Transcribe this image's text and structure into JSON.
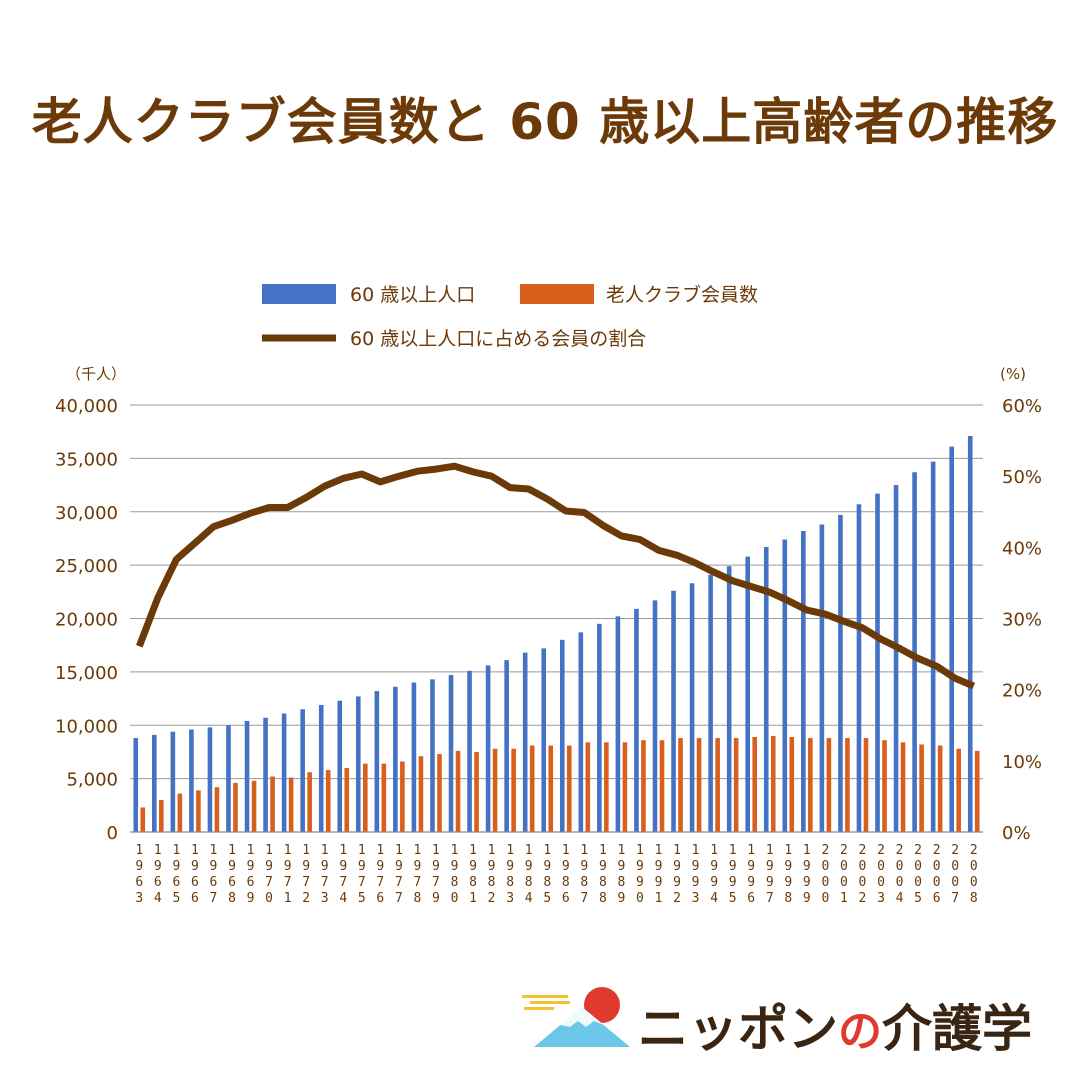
{
  "title": "老人クラブ会員数と 60 歳以上高齢者の推移",
  "chart_data": {
    "type": "bar",
    "categories": [
      "1963",
      "1964",
      "1965",
      "1966",
      "1967",
      "1968",
      "1969",
      "1970",
      "1971",
      "1972",
      "1973",
      "1974",
      "1975",
      "1976",
      "1977",
      "1978",
      "1979",
      "1980",
      "1981",
      "1982",
      "1983",
      "1984",
      "1985",
      "1986",
      "1987",
      "1988",
      "1989",
      "1990",
      "1991",
      "1992",
      "1993",
      "1994",
      "1995",
      "1996",
      "1997",
      "1998",
      "1999",
      "2000",
      "2001",
      "2002",
      "2003",
      "2004",
      "2005",
      "2006",
      "2007",
      "2008"
    ],
    "series": [
      {
        "name": "60 歳以上人口",
        "kind": "bar",
        "axis": "left",
        "color": "#4472c4",
        "values": [
          8800,
          9100,
          9400,
          9600,
          9800,
          10000,
          10400,
          10700,
          11100,
          11500,
          11900,
          12300,
          12700,
          13200,
          13600,
          14000,
          14300,
          14700,
          15100,
          15600,
          16100,
          16800,
          17200,
          18000,
          18700,
          19500,
          20200,
          20900,
          21700,
          22600,
          23300,
          24100,
          24900,
          25800,
          26700,
          27400,
          28200,
          28800,
          29700,
          30700,
          31700,
          32500,
          33700,
          34700,
          36100,
          37100
        ]
      },
      {
        "name": "老人クラブ会員数",
        "kind": "bar",
        "axis": "left",
        "color": "#d95f1c",
        "values": [
          2300,
          3000,
          3600,
          3900,
          4200,
          4600,
          4800,
          5200,
          5100,
          5600,
          5800,
          6000,
          6400,
          6400,
          6600,
          7100,
          7300,
          7600,
          7500,
          7800,
          7800,
          8100,
          8100,
          8100,
          8400,
          8400,
          8400,
          8600,
          8600,
          8800,
          8800,
          8800,
          8800,
          8900,
          9000,
          8900,
          8800,
          8800,
          8800,
          8800,
          8600,
          8400,
          8200,
          8100,
          7800,
          7600
        ]
      },
      {
        "name": "60 歳以上人口に占める会員の割合",
        "kind": "line",
        "axis": "right",
        "color": "#6b3a08",
        "values": [
          26.1,
          32.9,
          38.3,
          40.6,
          42.9,
          43.8,
          44.8,
          45.6,
          45.6,
          47.0,
          48.6,
          49.7,
          50.3,
          49.2,
          50.0,
          50.7,
          51.0,
          51.4,
          50.6,
          50.0,
          48.4,
          48.2,
          46.8,
          45.1,
          44.9,
          43.1,
          41.6,
          41.1,
          39.6,
          38.9,
          37.8,
          36.5,
          35.3,
          34.5,
          33.7,
          32.5,
          31.2,
          30.6,
          29.6,
          28.7,
          27.1,
          25.8,
          24.4,
          23.3,
          21.6,
          20.5
        ]
      }
    ],
    "yleft": {
      "unit": "（千人）",
      "min": 0,
      "max": 40000,
      "ticks": [
        "0",
        "5,000",
        "10,000",
        "15,000",
        "20,000",
        "25,000",
        "30,000",
        "35,000",
        "40,000"
      ]
    },
    "yright": {
      "unit": "(%)",
      "min": 0,
      "max": 60,
      "ticks": [
        "0%",
        "10%",
        "20%",
        "30%",
        "40%",
        "50%",
        "60%"
      ]
    },
    "grid": true,
    "legend_placement": "top"
  },
  "logo": {
    "text_a": "ニッポン",
    "text_b": "の",
    "text_c": "介護学"
  }
}
